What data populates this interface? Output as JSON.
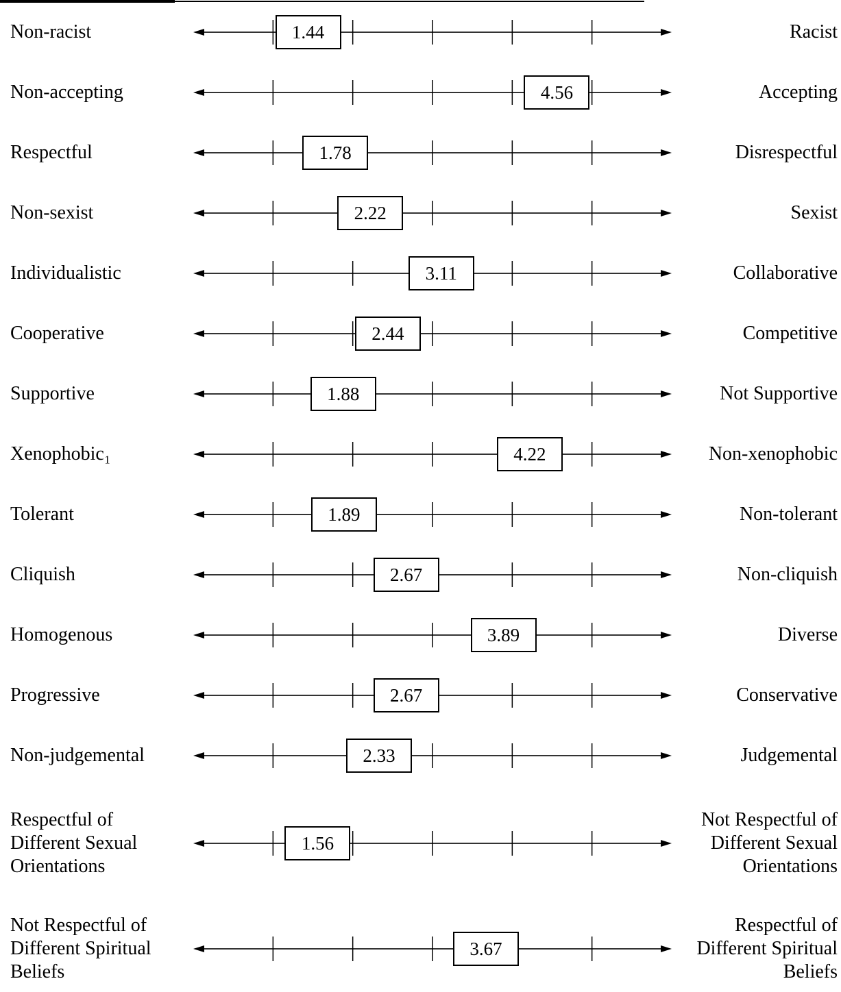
{
  "chart_data": {
    "type": "differential",
    "categories": [
      "Non-racist",
      "Non-accepting",
      "Respectful",
      "Non-sexist",
      "Individualistic",
      "Cooperative",
      "Supportive",
      "Xenophobic₁",
      "Tolerant",
      "Cliquish",
      "Homogenous",
      "Progressive",
      "Non-judgemental",
      "Respectful of Different Sexual Orientations",
      "Not Respectful of Different Spiritual Beliefs"
    ],
    "right_labels": [
      "Racist",
      "Accepting",
      "Disrespectful",
      "Sexist",
      "Collaborative",
      "Competitive",
      "Not Supportive",
      "Non-xenophobic",
      "Non-tolerant",
      "Non-cliquish",
      "Diverse",
      "Conservative",
      "Judgemental",
      "Not Respectful of Different Sexual Orientations",
      "Respectful of Different Spiritual Beliefs"
    ],
    "values": [
      1.44,
      4.56,
      1.78,
      2.22,
      3.11,
      2.44,
      1.88,
      4.22,
      1.89,
      2.67,
      3.89,
      2.67,
      2.33,
      1.56,
      3.67
    ],
    "xlim": [
      0,
      6
    ],
    "xticks": [
      1,
      2,
      3,
      4,
      5
    ]
  }
}
